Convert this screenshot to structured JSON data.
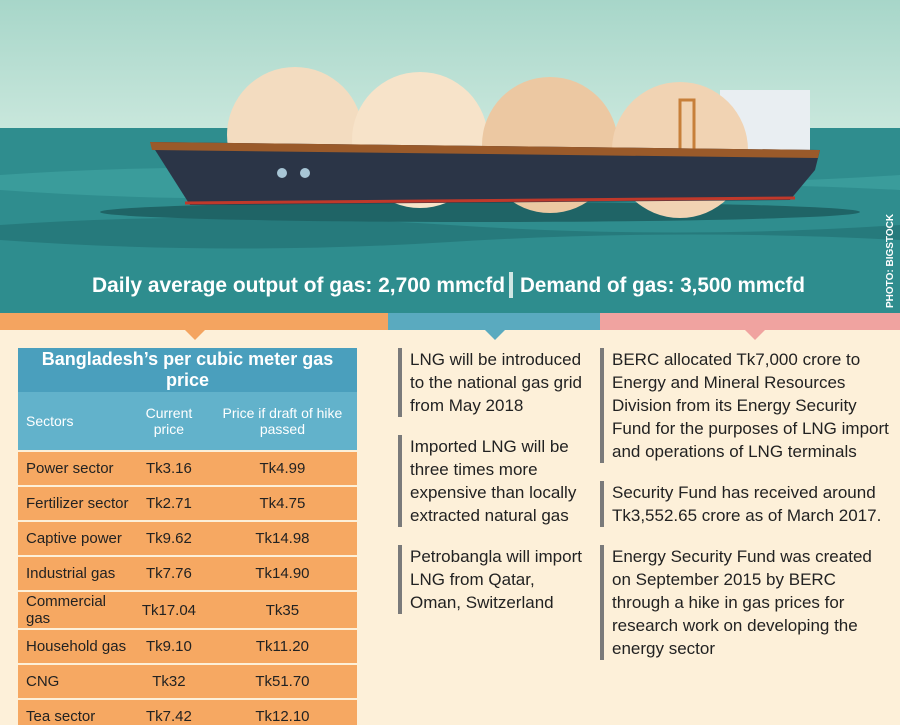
{
  "banner": {
    "headline_output": "Daily average output of gas: 2,700 mmcfd",
    "headline_demand": "Demand of gas: 3,500 mmcfd",
    "photo_credit": "PHOTO: BIGSTOCK"
  },
  "table": {
    "title": "Bangladesh’s per cubic meter gas price",
    "columns": [
      "Sectors",
      "Current price",
      "Price if draft of hike passed"
    ],
    "rows": [
      [
        "Power sector",
        "Tk3.16",
        "Tk4.99"
      ],
      [
        "Fertilizer sector",
        "Tk2.71",
        "Tk4.75"
      ],
      [
        "Captive power",
        "Tk9.62",
        "Tk14.98"
      ],
      [
        "Industrial gas",
        "Tk7.76",
        "Tk14.90"
      ],
      [
        "Commercial gas",
        "Tk17.04",
        "Tk35"
      ],
      [
        "Household gas",
        "Tk9.10",
        "Tk11.20"
      ],
      [
        "CNG",
        "Tk32",
        "Tk51.70"
      ],
      [
        "Tea sector",
        "Tk7.42",
        "Tk12.10"
      ]
    ]
  },
  "middle_notes": [
    "LNG will be introduced to the national gas grid from May 2018",
    "Imported LNG will be three times more expensive than locally extracted natural gas",
    "Petrobangla will import LNG from Qatar, Oman, Switzerland"
  ],
  "right_notes": [
    "BERC allocated Tk7,000 crore to Energy and Mineral Resources Division from its Energy Security Fund for the purposes of LNG import and operations of LNG terminals",
    "Security Fund has received around Tk3,552.65 crore as of March 2017.",
    "Energy Security Fund was created on September 2015 by BERC through a hike in gas prices for research work on developing the energy sector"
  ]
}
